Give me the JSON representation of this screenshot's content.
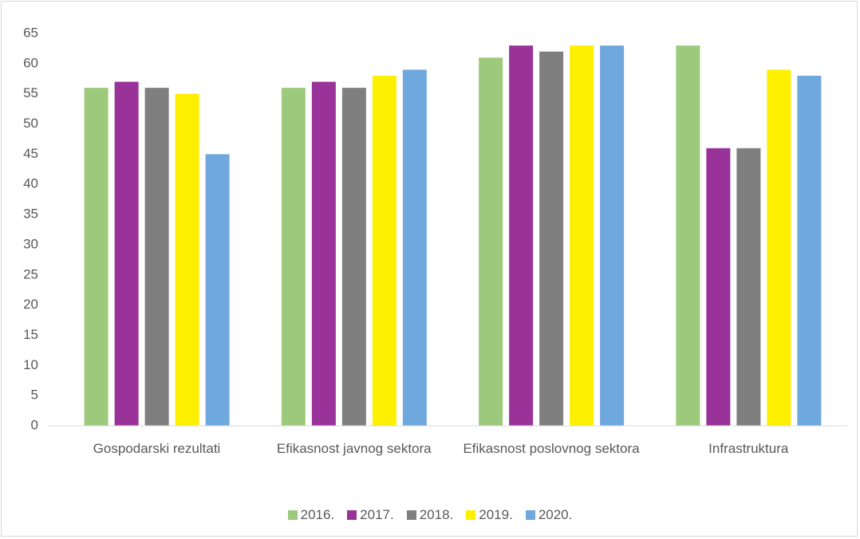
{
  "chart_data": {
    "type": "bar",
    "categories": [
      "Gospodarski rezultati",
      "Efikasnost javnog sektora",
      "Efikasnost poslovnog sektora",
      "Infrastruktura"
    ],
    "series": [
      {
        "name": "2016.",
        "color": "#9dc97d",
        "values": [
          56,
          56,
          61,
          63
        ]
      },
      {
        "name": "2017.",
        "color": "#993399",
        "values": [
          57,
          57,
          63,
          46
        ]
      },
      {
        "name": "2018.",
        "color": "#7f7f7f",
        "values": [
          56,
          56,
          62,
          46
        ]
      },
      {
        "name": "2019.",
        "color": "#ffef00",
        "values": [
          55,
          58,
          63,
          59
        ]
      },
      {
        "name": "2020.",
        "color": "#6fa8dc",
        "values": [
          45,
          59,
          63,
          58
        ]
      }
    ],
    "ylim": [
      0,
      65
    ],
    "yticks": [
      0,
      5,
      10,
      15,
      20,
      25,
      30,
      35,
      40,
      45,
      50,
      55,
      60,
      65
    ],
    "grid": false,
    "legend": "bottom"
  }
}
